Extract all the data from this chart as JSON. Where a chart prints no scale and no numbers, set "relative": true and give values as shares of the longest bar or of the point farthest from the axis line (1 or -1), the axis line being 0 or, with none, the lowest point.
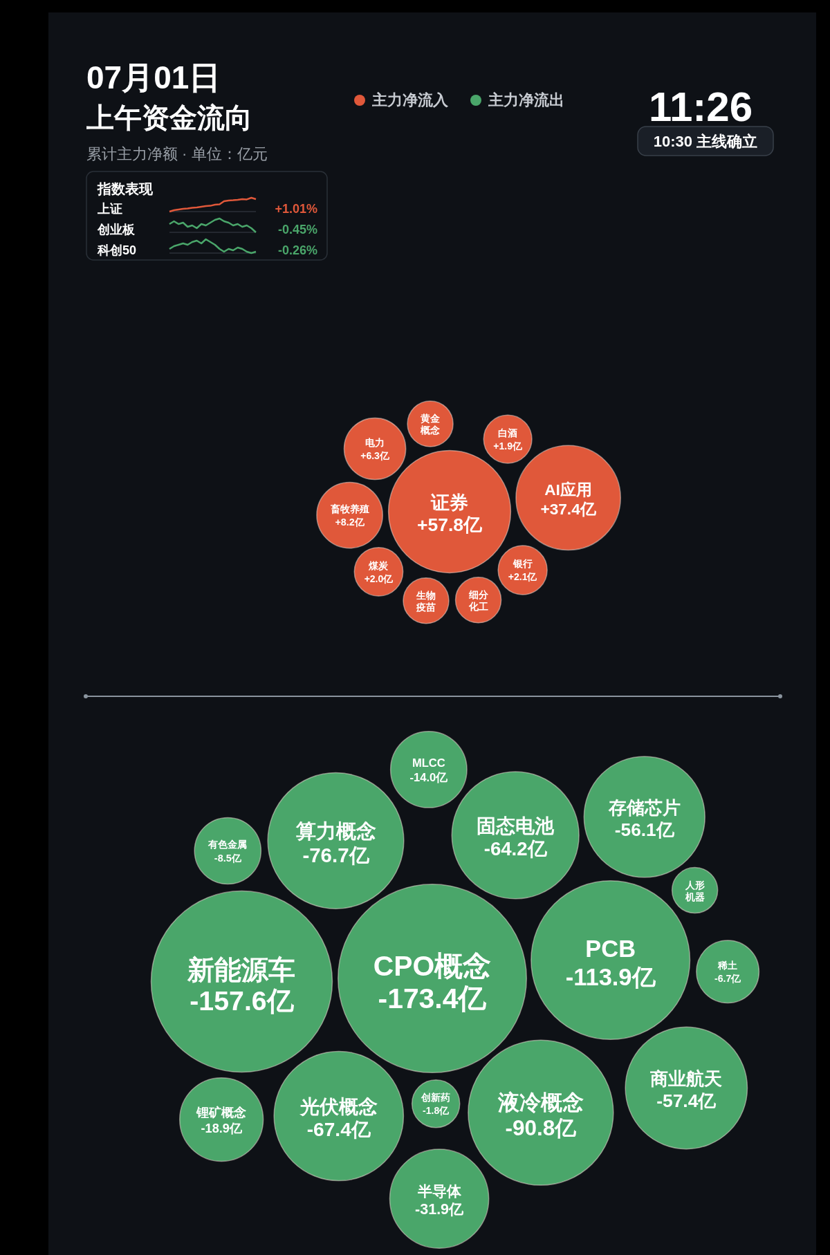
{
  "chart_data": [
    {
      "type": "other",
      "title": "07月01日",
      "subtitle": "上午资金流向",
      "legend": "top",
      "annotations": [
        "累计主力净额 · 单位：亿元",
        "11:26",
        "10:30 主线确立"
      ],
      "categories": [
        "证券",
        "AI应用",
        "电力",
        "畜牧养殖",
        "银行",
        "黄金概念",
        "细分化工",
        "白酒",
        "煤炭",
        "生物疫苗",
        "人形机器",
        "稀土",
        "创新药",
        "锂矿概念",
        "MLCC",
        "半导体",
        "存储芯片",
        "商业航天",
        "有色金属",
        "算力概念",
        "固态电池",
        "光伏概念",
        "液冷概念",
        "PCB",
        "新能源车",
        "CPO概念"
      ],
      "colors": [
        "#e0583a",
        "#e0583a",
        "#e0583a",
        "#e0583a",
        "#e0583a",
        "#e0583a",
        "#e0583a",
        "#e0583a",
        "#e0583a",
        "#e0583a",
        "#4aa66a",
        "#4aa66a",
        "#4aa66a",
        "#4aa66a",
        "#4aa66a",
        "#4aa66a",
        "#4aa66a",
        "#4aa66a",
        "#4aa66a",
        "#4aa66a",
        "#4aa66a",
        "#4aa66a",
        "#4aa66a",
        "#4aa66a",
        "#4aa66a",
        "#4aa66a"
      ],
      "series": [
        {
          "name": "主力净流入",
          "color": "#e0583a",
          "values": [
            57.8,
            37.4,
            6.3,
            8.2,
            2.1,
            null,
            null,
            1.9,
            2.0,
            null,
            null,
            null,
            null,
            null,
            null,
            null,
            null,
            null,
            null,
            null,
            null,
            null,
            null,
            null,
            null,
            null
          ],
          "value_labels": [
            "+57.8亿",
            "+37.4亿",
            "+6.3亿",
            "+8.2亿",
            "+2.1亿",
            null,
            null,
            "+1.9亿",
            "+2.0亿",
            null,
            null,
            null,
            null,
            null,
            null,
            null,
            null,
            null,
            null,
            null,
            null,
            null,
            null,
            null,
            null,
            null
          ]
        },
        {
          "name": "主力净流出",
          "color": "#4aa66a",
          "values": [
            null,
            null,
            null,
            null,
            null,
            null,
            null,
            null,
            null,
            null,
            null,
            -6.7,
            -1.8,
            -18.9,
            -14.0,
            -31.9,
            -56.1,
            -57.4,
            -8.5,
            -76.7,
            -64.2,
            -67.4,
            -90.8,
            -113.9,
            -157.6,
            -173.4
          ],
          "value_labels": [
            null,
            null,
            null,
            null,
            null,
            null,
            null,
            null,
            null,
            null,
            null,
            "-6.7亿",
            "-1.8亿",
            "-18.9亿",
            "-14.0亿",
            "-31.9亿",
            "-56.1亿",
            "-57.4亿",
            "-8.5亿",
            "-76.7亿",
            "-64.2亿",
            "-67.4亿",
            "-90.8亿",
            "-113.9亿",
            "-157.6亿",
            "-173.4亿"
          ]
        }
      ]
    },
    {
      "type": "line",
      "title": "指数表现",
      "relative": true,
      "categories": [
        null,
        null,
        null,
        null,
        null,
        null,
        null,
        null,
        null,
        null,
        null,
        null,
        null,
        null,
        null,
        null,
        null,
        null,
        null,
        null
      ],
      "series": [
        {
          "name": "上证",
          "color": "#e0583a",
          "values": [
            0,
            0.1,
            0.15,
            0.2,
            0.22,
            0.28,
            0.3,
            0.35,
            0.4,
            0.42,
            0.5,
            0.52,
            0.75,
            0.8,
            0.82,
            0.85,
            0.9,
            0.88,
            1,
            0.9
          ]
        }
      ],
      "annotations": [
        "+1.01%"
      ]
    },
    {
      "type": "line",
      "relative": true,
      "categories": [
        null,
        null,
        null,
        null,
        null,
        null,
        null,
        null,
        null,
        null,
        null,
        null,
        null,
        null,
        null,
        null,
        null,
        null,
        null,
        null
      ],
      "series": [
        {
          "name": "创业板",
          "color": "#4aa66a",
          "values": [
            0.6,
            0.8,
            0.6,
            0.7,
            0.4,
            0.5,
            0.3,
            0.6,
            0.5,
            0.7,
            0.9,
            1,
            0.8,
            0.7,
            0.5,
            0.6,
            0.4,
            0.5,
            0.3,
            0
          ]
        }
      ],
      "annotations": [
        "-0.45%"
      ]
    },
    {
      "type": "line",
      "relative": true,
      "categories": [
        null,
        null,
        null,
        null,
        null,
        null,
        null,
        null,
        null,
        null,
        null,
        null,
        null,
        null,
        null,
        null,
        null,
        null,
        null,
        null
      ],
      "series": [
        {
          "name": "科创50",
          "color": "#4aa66a",
          "values": [
            0.3,
            0.5,
            0.6,
            0.7,
            0.6,
            0.8,
            0.9,
            0.7,
            1,
            0.8,
            0.6,
            0.3,
            0.1,
            0.3,
            0.2,
            0.4,
            0.3,
            0.1,
            0,
            0.1
          ]
        }
      ],
      "annotations": [
        "-0.26%"
      ]
    }
  ]
}
